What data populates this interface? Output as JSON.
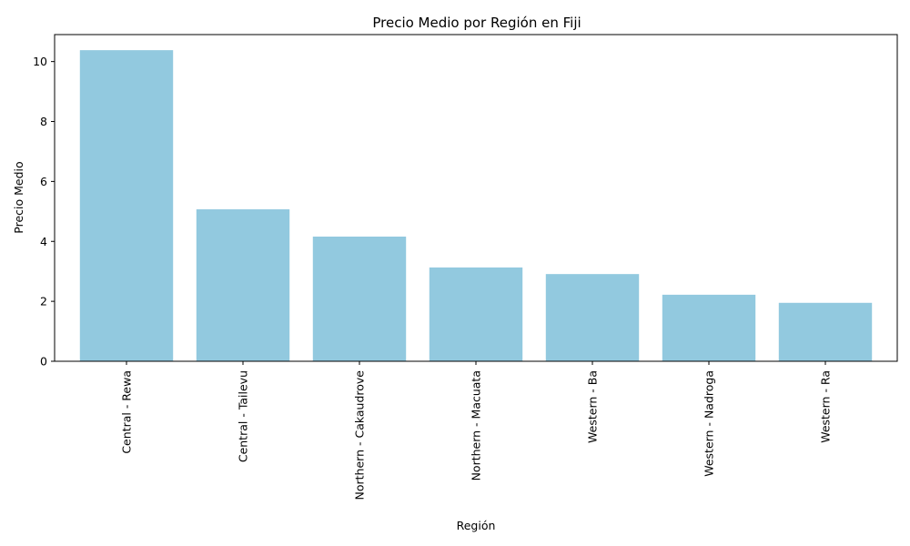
{
  "chart_data": {
    "type": "bar",
    "title": "Precio Medio por Región en Fiji",
    "xlabel": "Región",
    "ylabel": "Precio Medio",
    "categories": [
      "Central - Rewa",
      "Central - Tailevu",
      "Northern - Cakaudrove",
      "Northern - Macuata",
      "Western - Ba",
      "Western - Nadroga",
      "Western - Ra"
    ],
    "values": [
      10.38,
      5.07,
      4.16,
      3.13,
      2.91,
      2.22,
      1.95
    ],
    "ylim": [
      0,
      10.9
    ],
    "yticks": [
      0,
      2,
      4,
      6,
      8,
      10
    ],
    "bar_color": "#92c9df",
    "grid": false,
    "legend": "none"
  }
}
